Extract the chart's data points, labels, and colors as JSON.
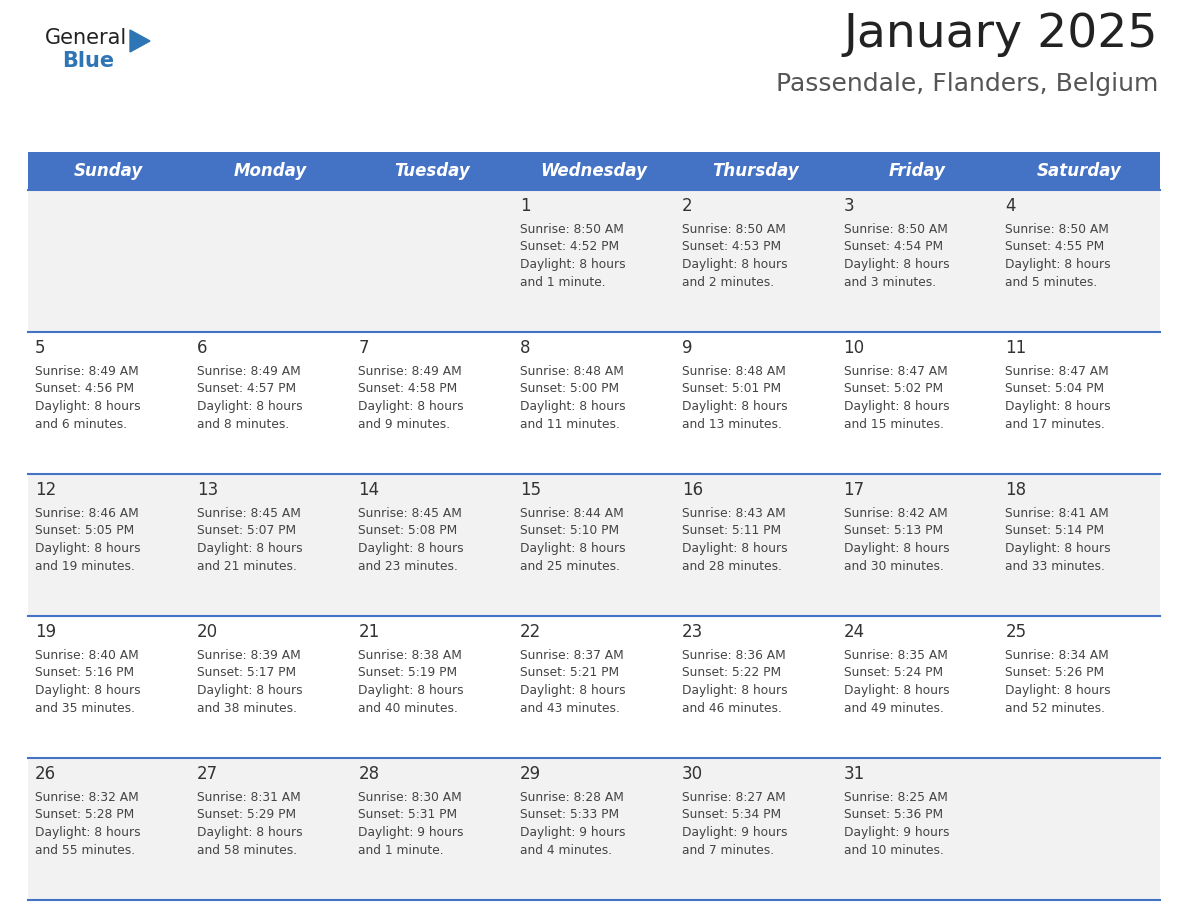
{
  "title": "January 2025",
  "subtitle": "Passendale, Flanders, Belgium",
  "days_of_week": [
    "Sunday",
    "Monday",
    "Tuesday",
    "Wednesday",
    "Thursday",
    "Friday",
    "Saturday"
  ],
  "header_bg": "#4472C4",
  "header_text_color": "#FFFFFF",
  "cell_bg_odd": "#F2F2F2",
  "cell_bg_even": "#FFFFFF",
  "border_color": "#4472C4",
  "day_number_color": "#333333",
  "content_text_color": "#444444",
  "title_color": "#222222",
  "subtitle_color": "#555555",
  "logo_general_color": "#222222",
  "logo_blue_color": "#2E75B6",
  "fig_width": 11.88,
  "fig_height": 9.18,
  "dpi": 100,
  "weeks": [
    {
      "days": [
        {
          "date": null,
          "sunrise": null,
          "sunset": null,
          "daylight": null
        },
        {
          "date": null,
          "sunrise": null,
          "sunset": null,
          "daylight": null
        },
        {
          "date": null,
          "sunrise": null,
          "sunset": null,
          "daylight": null
        },
        {
          "date": 1,
          "sunrise": "8:50 AM",
          "sunset": "4:52 PM",
          "daylight": "8 hours\nand 1 minute."
        },
        {
          "date": 2,
          "sunrise": "8:50 AM",
          "sunset": "4:53 PM",
          "daylight": "8 hours\nand 2 minutes."
        },
        {
          "date": 3,
          "sunrise": "8:50 AM",
          "sunset": "4:54 PM",
          "daylight": "8 hours\nand 3 minutes."
        },
        {
          "date": 4,
          "sunrise": "8:50 AM",
          "sunset": "4:55 PM",
          "daylight": "8 hours\nand 5 minutes."
        }
      ]
    },
    {
      "days": [
        {
          "date": 5,
          "sunrise": "8:49 AM",
          "sunset": "4:56 PM",
          "daylight": "8 hours\nand 6 minutes."
        },
        {
          "date": 6,
          "sunrise": "8:49 AM",
          "sunset": "4:57 PM",
          "daylight": "8 hours\nand 8 minutes."
        },
        {
          "date": 7,
          "sunrise": "8:49 AM",
          "sunset": "4:58 PM",
          "daylight": "8 hours\nand 9 minutes."
        },
        {
          "date": 8,
          "sunrise": "8:48 AM",
          "sunset": "5:00 PM",
          "daylight": "8 hours\nand 11 minutes."
        },
        {
          "date": 9,
          "sunrise": "8:48 AM",
          "sunset": "5:01 PM",
          "daylight": "8 hours\nand 13 minutes."
        },
        {
          "date": 10,
          "sunrise": "8:47 AM",
          "sunset": "5:02 PM",
          "daylight": "8 hours\nand 15 minutes."
        },
        {
          "date": 11,
          "sunrise": "8:47 AM",
          "sunset": "5:04 PM",
          "daylight": "8 hours\nand 17 minutes."
        }
      ]
    },
    {
      "days": [
        {
          "date": 12,
          "sunrise": "8:46 AM",
          "sunset": "5:05 PM",
          "daylight": "8 hours\nand 19 minutes."
        },
        {
          "date": 13,
          "sunrise": "8:45 AM",
          "sunset": "5:07 PM",
          "daylight": "8 hours\nand 21 minutes."
        },
        {
          "date": 14,
          "sunrise": "8:45 AM",
          "sunset": "5:08 PM",
          "daylight": "8 hours\nand 23 minutes."
        },
        {
          "date": 15,
          "sunrise": "8:44 AM",
          "sunset": "5:10 PM",
          "daylight": "8 hours\nand 25 minutes."
        },
        {
          "date": 16,
          "sunrise": "8:43 AM",
          "sunset": "5:11 PM",
          "daylight": "8 hours\nand 28 minutes."
        },
        {
          "date": 17,
          "sunrise": "8:42 AM",
          "sunset": "5:13 PM",
          "daylight": "8 hours\nand 30 minutes."
        },
        {
          "date": 18,
          "sunrise": "8:41 AM",
          "sunset": "5:14 PM",
          "daylight": "8 hours\nand 33 minutes."
        }
      ]
    },
    {
      "days": [
        {
          "date": 19,
          "sunrise": "8:40 AM",
          "sunset": "5:16 PM",
          "daylight": "8 hours\nand 35 minutes."
        },
        {
          "date": 20,
          "sunrise": "8:39 AM",
          "sunset": "5:17 PM",
          "daylight": "8 hours\nand 38 minutes."
        },
        {
          "date": 21,
          "sunrise": "8:38 AM",
          "sunset": "5:19 PM",
          "daylight": "8 hours\nand 40 minutes."
        },
        {
          "date": 22,
          "sunrise": "8:37 AM",
          "sunset": "5:21 PM",
          "daylight": "8 hours\nand 43 minutes."
        },
        {
          "date": 23,
          "sunrise": "8:36 AM",
          "sunset": "5:22 PM",
          "daylight": "8 hours\nand 46 minutes."
        },
        {
          "date": 24,
          "sunrise": "8:35 AM",
          "sunset": "5:24 PM",
          "daylight": "8 hours\nand 49 minutes."
        },
        {
          "date": 25,
          "sunrise": "8:34 AM",
          "sunset": "5:26 PM",
          "daylight": "8 hours\nand 52 minutes."
        }
      ]
    },
    {
      "days": [
        {
          "date": 26,
          "sunrise": "8:32 AM",
          "sunset": "5:28 PM",
          "daylight": "8 hours\nand 55 minutes."
        },
        {
          "date": 27,
          "sunrise": "8:31 AM",
          "sunset": "5:29 PM",
          "daylight": "8 hours\nand 58 minutes."
        },
        {
          "date": 28,
          "sunrise": "8:30 AM",
          "sunset": "5:31 PM",
          "daylight": "9 hours\nand 1 minute."
        },
        {
          "date": 29,
          "sunrise": "8:28 AM",
          "sunset": "5:33 PM",
          "daylight": "9 hours\nand 4 minutes."
        },
        {
          "date": 30,
          "sunrise": "8:27 AM",
          "sunset": "5:34 PM",
          "daylight": "9 hours\nand 7 minutes."
        },
        {
          "date": 31,
          "sunrise": "8:25 AM",
          "sunset": "5:36 PM",
          "daylight": "9 hours\nand 10 minutes."
        },
        {
          "date": null,
          "sunrise": null,
          "sunset": null,
          "daylight": null
        }
      ]
    }
  ]
}
